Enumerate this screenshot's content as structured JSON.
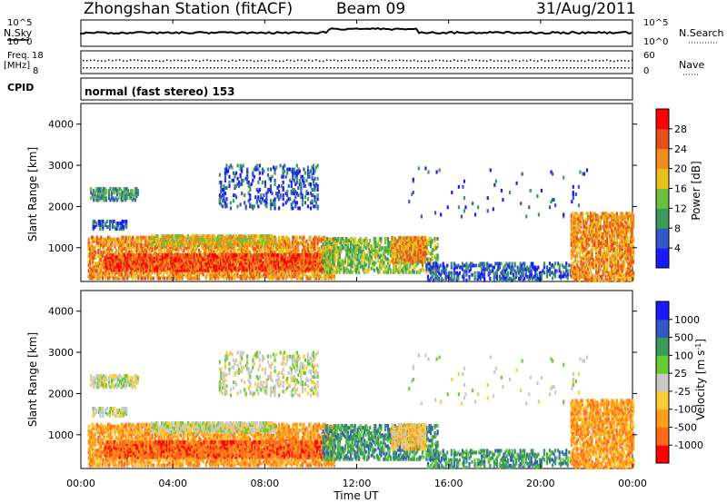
{
  "header": {
    "station": "Zhongshan Station (fitACF)",
    "beam": "Beam 09",
    "date": "31/Aug/2011"
  },
  "top_panels": {
    "nsky_label": "N.Sky",
    "nsearch_label": "N.Search",
    "nsearch_tick_max": "10^5",
    "nsearch_tick_min": "10^0",
    "freq_label_1": "Freq.",
    "freq_label_2": "[MHz]",
    "freq_tick_max": "18",
    "freq_tick_min": "8",
    "nave_label": "Nave",
    "nave_tick_max": "60",
    "nave_tick_min": "0",
    "cpid_label": "CPID",
    "cpid_text": "normal (fast stereo) 153"
  },
  "colors": {
    "power": [
      "#1a1aff",
      "#3459c4",
      "#3a9b5a",
      "#6bbf3c",
      "#e8c21a",
      "#f28c1a",
      "#e8501a",
      "#ff0000"
    ],
    "velocity": [
      "#ff0000",
      "#ff6a1a",
      "#ff9e1a",
      "#ffcc33",
      "#c8c8c8",
      "#66cc33",
      "#3a9b5a",
      "#3459c4",
      "#1a1aff"
    ],
    "edge_blue": "#2a4fb5"
  },
  "chart_data": [
    {
      "type": "heatmap",
      "name": "power",
      "xlabel": "",
      "ylabel": "Slant Range [km]",
      "ylim": [
        180,
        4500
      ],
      "yticks": [
        "1000",
        "2000",
        "3000",
        "4000"
      ],
      "colorbar_label": "Power [dB]",
      "colorbar_ticks": [
        "4",
        "8",
        "12",
        "16",
        "20",
        "24",
        "28"
      ],
      "x_range_hours": [
        0,
        24
      ],
      "ranges": [
        [
          200,
          1300
        ],
        [
          1400,
          1800
        ],
        [
          2000,
          2600
        ],
        [
          2600,
          3100
        ]
      ],
      "time_hours": [
        0.5,
        2,
        4,
        6,
        8,
        10,
        11,
        13,
        15,
        17,
        20,
        22,
        23.5
      ]
    },
    {
      "type": "heatmap",
      "name": "velocity",
      "xlabel": "Time UT",
      "ylabel": "Slant Range [km]",
      "ylim": [
        180,
        4500
      ],
      "yticks": [
        "1000",
        "2000",
        "3000",
        "4000"
      ],
      "xticks": [
        "00:00",
        "04:00",
        "08:00",
        "12:00",
        "16:00",
        "20:00",
        "00:00"
      ],
      "colorbar_label": "Velocity [m s^-1]",
      "colorbar_ticks": [
        "1000",
        "500",
        "100",
        "25",
        "-25",
        "-100",
        "-500",
        "-1000"
      ],
      "x_range_hours": [
        0,
        24
      ]
    }
  ]
}
